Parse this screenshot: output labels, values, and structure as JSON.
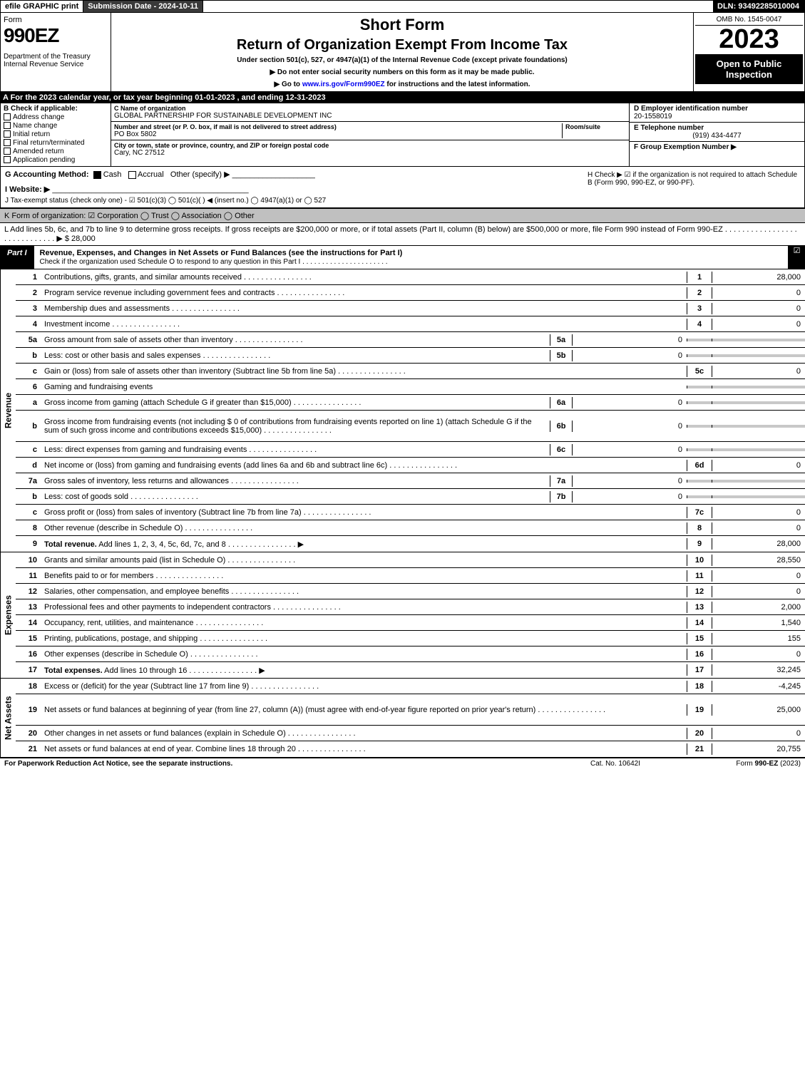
{
  "topbar": {
    "efile": "efile GRAPHIC print",
    "submission": "Submission Date - 2024-10-11",
    "dln": "DLN: 93492285010004"
  },
  "header": {
    "form_word": "Form",
    "form_num": "990EZ",
    "dept": "Department of the Treasury\nInternal Revenue Service",
    "short_form": "Short Form",
    "title": "Return of Organization Exempt From Income Tax",
    "subtitle": "Under section 501(c), 527, or 4947(a)(1) of the Internal Revenue Code (except private foundations)",
    "warn": "▶ Do not enter social security numbers on this form as it may be made public.",
    "goto_pre": "▶ Go to ",
    "goto_link": "www.irs.gov/Form990EZ",
    "goto_post": " for instructions and the latest information.",
    "omb": "OMB No. 1545-0047",
    "year": "2023",
    "open": "Open to Public Inspection"
  },
  "rowA": "A  For the 2023 calendar year, or tax year beginning 01-01-2023 , and ending 12-31-2023",
  "B": {
    "hdr": "B  Check if applicable:",
    "items": [
      "Address change",
      "Name change",
      "Initial return",
      "Final return/terminated",
      "Amended return",
      "Application pending"
    ]
  },
  "C": {
    "name_lbl": "C Name of organization",
    "name": "GLOBAL PARTNERSHIP FOR SUSTAINABLE DEVELOPMENT INC",
    "street_lbl": "Number and street (or P. O. box, if mail is not delivered to street address)",
    "room_lbl": "Room/suite",
    "street": "PO Box 5802",
    "city_lbl": "City or town, state or province, country, and ZIP or foreign postal code",
    "city": "Cary, NC  27512"
  },
  "D": {
    "ein_lbl": "D Employer identification number",
    "ein": "20-1558019",
    "tel_lbl": "E Telephone number",
    "tel": "(919) 434-4477",
    "grp_lbl": "F Group Exemption Number   ▶"
  },
  "G": {
    "label": "G Accounting Method:",
    "cash": "Cash",
    "accrual": "Accrual",
    "other": "Other (specify) ▶"
  },
  "H": "H   Check ▶  ☑  if the organization is not required to attach Schedule B (Form 990, 990-EZ, or 990-PF).",
  "I": "I Website: ▶",
  "J": "J Tax-exempt status (check only one) - ☑ 501(c)(3)  ◯ 501(c)(  ) ◀ (insert no.)  ◯ 4947(a)(1) or  ◯ 527",
  "K": "K Form of organization:   ☑ Corporation   ◯ Trust   ◯ Association   ◯ Other",
  "L": "L Add lines 5b, 6c, and 7b to line 9 to determine gross receipts. If gross receipts are $200,000 or more, or if total assets (Part II, column (B) below) are $500,000 or more, file Form 990 instead of Form 990-EZ . . . . . . . . . . . . . . . . . . . . . . . . . . . . .  ▶ $ 28,000",
  "part1": {
    "tab": "Part I",
    "title": "Revenue, Expenses, and Changes in Net Assets or Fund Balances (see the instructions for Part I)",
    "sub": "Check if the organization used Schedule O to respond to any question in this Part I . . . . . . . . . . . . . . . . . . . . . ."
  },
  "rev": {
    "side": "Revenue",
    "lines": [
      {
        "n": "1",
        "t": "Contributions, gifts, grants, and similar amounts received",
        "box": "1",
        "v": "28,000"
      },
      {
        "n": "2",
        "t": "Program service revenue including government fees and contracts",
        "box": "2",
        "v": "0"
      },
      {
        "n": "3",
        "t": "Membership dues and assessments",
        "box": "3",
        "v": "0"
      },
      {
        "n": "4",
        "t": "Investment income",
        "box": "4",
        "v": "0"
      },
      {
        "n": "5a",
        "t": "Gross amount from sale of assets other than inventory",
        "sn": "5a",
        "sv": "0"
      },
      {
        "n": "b",
        "t": "Less: cost or other basis and sales expenses",
        "sn": "5b",
        "sv": "0"
      },
      {
        "n": "c",
        "t": "Gain or (loss) from sale of assets other than inventory (Subtract line 5b from line 5a)",
        "box": "5c",
        "v": "0"
      },
      {
        "n": "6",
        "t": "Gaming and fundraising events"
      },
      {
        "n": "a",
        "t": "Gross income from gaming (attach Schedule G if greater than $15,000)",
        "sn": "6a",
        "sv": "0"
      },
      {
        "n": "b",
        "t": "Gross income from fundraising events (not including $ 0   of contributions from fundraising events reported on line 1) (attach Schedule G if the sum of such gross income and contributions exceeds $15,000)",
        "sn": "6b",
        "sv": "0",
        "tall": true
      },
      {
        "n": "c",
        "t": "Less: direct expenses from gaming and fundraising events",
        "sn": "6c",
        "sv": "0"
      },
      {
        "n": "d",
        "t": "Net income or (loss) from gaming and fundraising events (add lines 6a and 6b and subtract line 6c)",
        "box": "6d",
        "v": "0"
      },
      {
        "n": "7a",
        "t": "Gross sales of inventory, less returns and allowances",
        "sn": "7a",
        "sv": "0"
      },
      {
        "n": "b",
        "t": "Less: cost of goods sold",
        "sn": "7b",
        "sv": "0"
      },
      {
        "n": "c",
        "t": "Gross profit or (loss) from sales of inventory (Subtract line 7b from line 7a)",
        "box": "7c",
        "v": "0"
      },
      {
        "n": "8",
        "t": "Other revenue (describe in Schedule O)",
        "box": "8",
        "v": "0"
      },
      {
        "n": "9",
        "t": "Total revenue. Add lines 1, 2, 3, 4, 5c, 6d, 7c, and 8",
        "box": "9",
        "v": "28,000",
        "bold": true,
        "arrow": true
      }
    ]
  },
  "exp": {
    "side": "Expenses",
    "lines": [
      {
        "n": "10",
        "t": "Grants and similar amounts paid (list in Schedule O)",
        "box": "10",
        "v": "28,550"
      },
      {
        "n": "11",
        "t": "Benefits paid to or for members",
        "box": "11",
        "v": "0"
      },
      {
        "n": "12",
        "t": "Salaries, other compensation, and employee benefits",
        "box": "12",
        "v": "0"
      },
      {
        "n": "13",
        "t": "Professional fees and other payments to independent contractors",
        "box": "13",
        "v": "2,000"
      },
      {
        "n": "14",
        "t": "Occupancy, rent, utilities, and maintenance",
        "box": "14",
        "v": "1,540"
      },
      {
        "n": "15",
        "t": "Printing, publications, postage, and shipping",
        "box": "15",
        "v": "155"
      },
      {
        "n": "16",
        "t": "Other expenses (describe in Schedule O)",
        "box": "16",
        "v": "0"
      },
      {
        "n": "17",
        "t": "Total expenses. Add lines 10 through 16",
        "box": "17",
        "v": "32,245",
        "bold": true,
        "arrow": true
      }
    ]
  },
  "net": {
    "side": "Net Assets",
    "lines": [
      {
        "n": "18",
        "t": "Excess or (deficit) for the year (Subtract line 17 from line 9)",
        "box": "18",
        "v": "-4,245"
      },
      {
        "n": "19",
        "t": "Net assets or fund balances at beginning of year (from line 27, column (A)) (must agree with end-of-year figure reported on prior year's return)",
        "box": "19",
        "v": "25,000",
        "tall": true
      },
      {
        "n": "20",
        "t": "Other changes in net assets or fund balances (explain in Schedule O)",
        "box": "20",
        "v": "0"
      },
      {
        "n": "21",
        "t": "Net assets or fund balances at end of year. Combine lines 18 through 20",
        "box": "21",
        "v": "20,755"
      }
    ]
  },
  "footer": {
    "left": "For Paperwork Reduction Act Notice, see the separate instructions.",
    "center": "Cat. No. 10642I",
    "right": "Form 990-EZ (2023)"
  }
}
